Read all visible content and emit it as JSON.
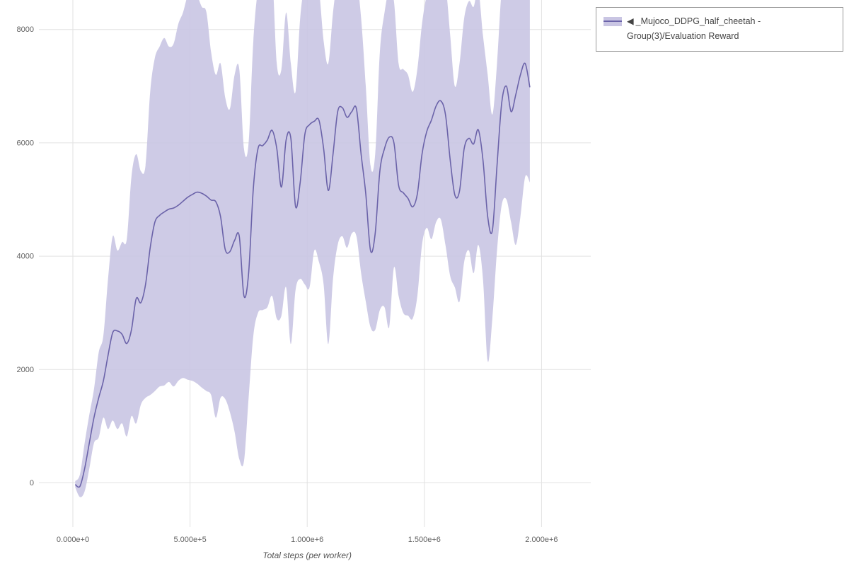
{
  "page": {
    "background": "#ffffff"
  },
  "legend": {
    "collapse_icon": "◀",
    "label": "_Mujoco_DDPG_half_cheetah - Group(3)/Evaluation Reward"
  },
  "chart_data": {
    "type": "line",
    "title": "",
    "xlabel": "Total steps (per worker)",
    "ylabel": "",
    "grid": true,
    "legend_position": "top-right-outside",
    "xlim": [
      -145000,
      2210000
    ],
    "ylim": [
      -780,
      8520
    ],
    "x_tick_values": [
      0,
      500000,
      1000000,
      1500000,
      2000000
    ],
    "x_tick_labels": [
      "0.000e+0",
      "5.000e+5",
      "1.000e+6",
      "1.500e+6",
      "2.000e+6"
    ],
    "y_ticks": [
      0,
      2000,
      4000,
      6000,
      8000
    ],
    "colors": {
      "grid": "#e2e2e2",
      "tick_text": "#606060",
      "axis_label_text": "#555555"
    },
    "series": [
      {
        "name": "_Mujoco_DDPG_half_cheetah - Group(3)/Evaluation Reward",
        "color": "#6b63a9",
        "band_color": "#c9c5e3",
        "x": [
          10000,
          30000,
          50000,
          70000,
          90000,
          110000,
          130000,
          150000,
          170000,
          190000,
          210000,
          230000,
          250000,
          270000,
          290000,
          310000,
          330000,
          350000,
          370000,
          390000,
          410000,
          430000,
          450000,
          470000,
          490000,
          510000,
          530000,
          550000,
          570000,
          590000,
          610000,
          630000,
          650000,
          670000,
          690000,
          710000,
          730000,
          750000,
          770000,
          790000,
          810000,
          830000,
          850000,
          870000,
          890000,
          910000,
          930000,
          950000,
          970000,
          990000,
          1010000,
          1030000,
          1050000,
          1070000,
          1090000,
          1110000,
          1130000,
          1150000,
          1170000,
          1190000,
          1210000,
          1230000,
          1250000,
          1270000,
          1290000,
          1310000,
          1330000,
          1350000,
          1370000,
          1390000,
          1410000,
          1430000,
          1450000,
          1470000,
          1490000,
          1510000,
          1530000,
          1550000,
          1570000,
          1590000,
          1610000,
          1630000,
          1650000,
          1670000,
          1690000,
          1710000,
          1730000,
          1750000,
          1770000,
          1790000,
          1810000,
          1830000,
          1850000,
          1870000,
          1890000,
          1910000,
          1930000,
          1950000
        ],
        "mean": [
          -30,
          -60,
          250,
          700,
          1150,
          1500,
          1800,
          2250,
          2650,
          2680,
          2620,
          2460,
          2700,
          3250,
          3180,
          3500,
          4150,
          4600,
          4720,
          4780,
          4830,
          4850,
          4900,
          4970,
          5040,
          5090,
          5130,
          5110,
          5060,
          4990,
          4960,
          4700,
          4120,
          4080,
          4280,
          4350,
          3300,
          3700,
          5200,
          5900,
          5950,
          6050,
          6220,
          5900,
          5220,
          6050,
          6080,
          4880,
          5300,
          6150,
          6320,
          6380,
          6400,
          5900,
          5160,
          5800,
          6550,
          6620,
          6450,
          6550,
          6600,
          5800,
          5100,
          4100,
          4400,
          5500,
          5900,
          6100,
          6000,
          5250,
          5120,
          5020,
          4870,
          5100,
          5800,
          6200,
          6400,
          6650,
          6740,
          6500,
          5700,
          5080,
          5150,
          5900,
          6080,
          5980,
          6230,
          5700,
          4700,
          4450,
          5600,
          6700,
          7000,
          6550,
          6850,
          7200,
          7400,
          6980
        ],
        "lower": [
          -80,
          -250,
          -150,
          250,
          700,
          800,
          1150,
          950,
          1100,
          950,
          1050,
          820,
          1180,
          1050,
          1380,
          1500,
          1550,
          1620,
          1700,
          1720,
          1780,
          1700,
          1800,
          1850,
          1820,
          1800,
          1750,
          1680,
          1620,
          1550,
          1150,
          1500,
          1480,
          1250,
          900,
          420,
          380,
          1500,
          2600,
          3000,
          3050,
          3100,
          3300,
          2900,
          2950,
          3450,
          2450,
          3400,
          3600,
          3500,
          3450,
          4100,
          3900,
          3500,
          2450,
          3600,
          4200,
          4350,
          4150,
          4400,
          4350,
          3700,
          3200,
          2750,
          2700,
          3050,
          3100,
          2750,
          3800,
          3300,
          3000,
          2950,
          2900,
          3300,
          4200,
          4500,
          4300,
          4600,
          4650,
          4200,
          3650,
          3450,
          3200,
          3900,
          4100,
          3700,
          4200,
          3600,
          2150,
          2900,
          4100,
          4900,
          5000,
          4600,
          4200,
          4700,
          5400,
          5300
        ],
        "upper": [
          30,
          150,
          700,
          1200,
          1650,
          2300,
          2600,
          3600,
          4350,
          4100,
          4250,
          4300,
          5400,
          5800,
          5500,
          5600,
          6900,
          7500,
          7700,
          7850,
          7700,
          7750,
          8100,
          8300,
          8600,
          8700,
          8600,
          8400,
          8300,
          7600,
          7200,
          7400,
          6800,
          6600,
          7200,
          7300,
          5900,
          6000,
          7800,
          8700,
          8800,
          8900,
          9000,
          7400,
          7300,
          8300,
          7400,
          6900,
          8200,
          8800,
          8800,
          8900,
          8700,
          7800,
          7400,
          8300,
          8900,
          9000,
          8600,
          8800,
          8900,
          8200,
          7000,
          5600,
          5800,
          7600,
          8300,
          8700,
          8500,
          7400,
          7300,
          7200,
          6900,
          7300,
          8100,
          8600,
          8800,
          9000,
          9000,
          8800,
          7900,
          7000,
          7400,
          8200,
          8500,
          8400,
          8700,
          7900,
          7200,
          6500,
          7400,
          8700,
          9000,
          8600,
          9000,
          9100,
          9100,
          8700
        ]
      }
    ]
  }
}
